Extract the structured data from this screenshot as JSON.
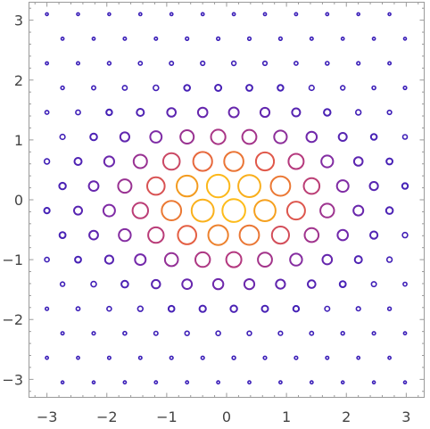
{
  "chart_data": {
    "type": "scatter",
    "title": "",
    "xlabel": "",
    "ylabel": "",
    "xlim": [
      -3.3,
      3.3
    ],
    "ylim": [
      -3.3,
      3.3
    ],
    "x_ticks": [
      -3,
      -2,
      -1,
      0,
      1,
      2,
      3
    ],
    "y_ticks": [
      -3,
      -2,
      -1,
      0,
      1,
      2,
      3
    ],
    "x_tick_labels": [
      "−3",
      "−2",
      "−1",
      "0",
      "1",
      "2",
      "3"
    ],
    "y_tick_labels": [
      "−3",
      "−2",
      "−1",
      "0",
      "1",
      "2",
      "3"
    ],
    "grid": false,
    "marker": "open circle",
    "lattice": {
      "row_spacing": 0.41,
      "column_spacing": 0.52,
      "odd_row_offset": 0.26,
      "y_range": [
        -3.1,
        3.1
      ],
      "x_range": [
        -3.0,
        3.0
      ]
    },
    "size_and_color_encoding": "circle size and color vary with value; largest near the center",
    "value_function": "exp(-(x/1.6)^2 - (y/1.05)^2)",
    "colormap": [
      "#3b1fb8",
      "#7a2aa8",
      "#b3387f",
      "#e35a46",
      "#f39a1f",
      "#ffc31a"
    ],
    "colors": {
      "frame": "#9a9a9a",
      "tick_label": "#444444",
      "background": "#ffffff"
    }
  }
}
